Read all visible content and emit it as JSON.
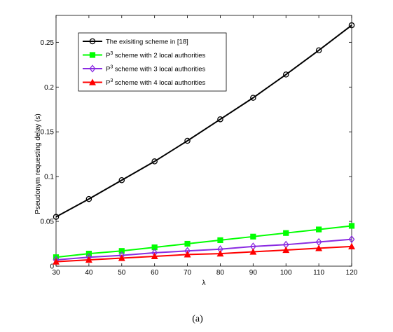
{
  "chart_data": {
    "type": "line",
    "title": "",
    "xlabel": "λ",
    "ylabel": "Pseudonym requesting delay (s)",
    "x": [
      30,
      40,
      50,
      60,
      70,
      80,
      90,
      100,
      110,
      120
    ],
    "xlim": [
      30,
      120
    ],
    "ylim": [
      0,
      0.28
    ],
    "xticks": [
      "30",
      "40",
      "50",
      "60",
      "70",
      "80",
      "90",
      "100",
      "110",
      "120"
    ],
    "yticks": [
      "0",
      "0.05",
      "0.1",
      "0.15",
      "0.2",
      "0.25"
    ],
    "grid": false,
    "legend_position": "top-left",
    "series": [
      {
        "name": "The exisiting scheme in [18]",
        "legend_main": "The exisiting scheme in [18]",
        "legend_sup": "",
        "legend_rest": "",
        "color": "#000000",
        "marker": "circle",
        "values": [
          0.055,
          0.075,
          0.096,
          0.117,
          0.14,
          0.164,
          0.188,
          0.214,
          0.241,
          0.269
        ]
      },
      {
        "name": "P3 scheme with 2 local authorities",
        "legend_main": "P",
        "legend_sup": "3",
        "legend_rest": " scheme with 2 local authorities",
        "color": "#00ff00",
        "marker": "square",
        "values": [
          0.01,
          0.014,
          0.017,
          0.021,
          0.025,
          0.029,
          0.033,
          0.037,
          0.041,
          0.045
        ]
      },
      {
        "name": "P3 scheme with 3 local authorities",
        "legend_main": "P",
        "legend_sup": "3",
        "legend_rest": " scheme with 3 local authorities",
        "color": "#8a2be2",
        "marker": "diamond",
        "values": [
          0.007,
          0.01,
          0.012,
          0.015,
          0.017,
          0.019,
          0.022,
          0.024,
          0.027,
          0.03
        ]
      },
      {
        "name": "P3 scheme with 4 local authorities",
        "legend_main": "P",
        "legend_sup": "3",
        "legend_rest": " scheme with 4 local authorities",
        "color": "#ff0000",
        "marker": "triangle",
        "values": [
          0.005,
          0.007,
          0.009,
          0.011,
          0.013,
          0.014,
          0.016,
          0.018,
          0.02,
          0.022
        ]
      }
    ]
  },
  "caption": "(a)"
}
